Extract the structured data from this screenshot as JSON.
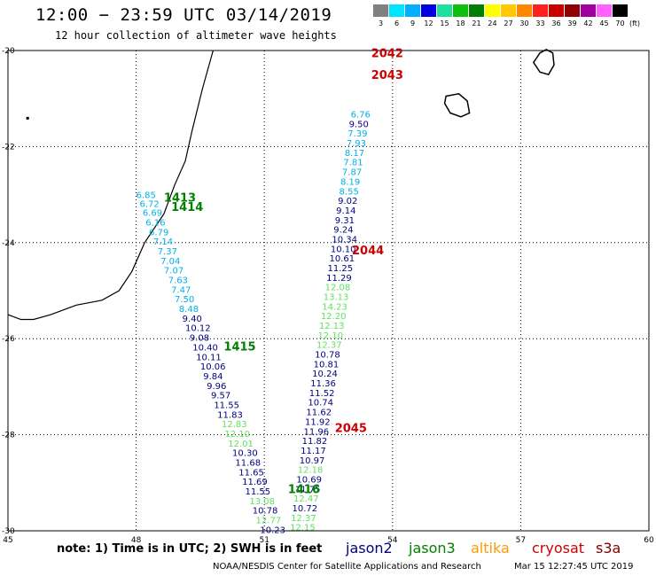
{
  "header": {
    "title": "12:00 − 23:59 UTC 03/14/2019",
    "subtitle": "12 hour collection of altimeter wave heights"
  },
  "legend": {
    "labels": [
      "3",
      "6",
      "9",
      "12",
      "15",
      "18",
      "21",
      "24",
      "27",
      "30",
      "33",
      "36",
      "39",
      "42",
      "45",
      "70"
    ],
    "colors": [
      "#808080",
      "#00e4ff",
      "#00b0ff",
      "#0000e0",
      "#20e0a0",
      "#10c010",
      "#008000",
      "#ffff00",
      "#ffc800",
      "#ff8800",
      "#ff2020",
      "#c80000",
      "#900000",
      "#a000a0",
      "#ff60ff",
      "#000000"
    ],
    "unit": "(ft)"
  },
  "map": {
    "lon_range": [
      45,
      60
    ],
    "lat_range": [
      -30,
      -20
    ],
    "lon_ticks": [
      45,
      48,
      51,
      54,
      57,
      60
    ],
    "lat_ticks": [
      -20,
      -22,
      -24,
      -26,
      -28,
      -30
    ],
    "lon_labels": [
      "45",
      "48",
      "51",
      "54",
      "57",
      "60"
    ],
    "lat_labels": [
      "-20",
      "-22",
      "-24",
      "-26",
      "-28",
      "-30"
    ],
    "grid": "dotted",
    "colors": {
      "jason2": "#000080",
      "jason3": "#008000",
      "altika": "#ff9900",
      "cryosat": "#cc0000",
      "s3a": "#800000",
      "swh_light_blue": "#00b0e8",
      "swh_dark_blue": "#000080",
      "swh_light_green": "#60e060"
    },
    "coastlines": {
      "madagascar": [
        [
          49.8,
          -20.0
        ],
        [
          49.55,
          -20.8
        ],
        [
          49.3,
          -21.7
        ],
        [
          49.15,
          -22.3
        ],
        [
          48.9,
          -22.8
        ],
        [
          48.65,
          -23.4
        ],
        [
          48.2,
          -24.0
        ],
        [
          47.9,
          -24.6
        ],
        [
          47.6,
          -25.0
        ],
        [
          47.2,
          -25.2
        ],
        [
          46.6,
          -25.3
        ],
        [
          46.0,
          -25.5
        ],
        [
          45.6,
          -25.6
        ],
        [
          45.3,
          -25.6
        ],
        [
          45.0,
          -25.5
        ]
      ],
      "reunion": [
        [
          55.25,
          -20.95
        ],
        [
          55.55,
          -20.9
        ],
        [
          55.75,
          -21.05
        ],
        [
          55.8,
          -21.3
        ],
        [
          55.6,
          -21.38
        ],
        [
          55.35,
          -21.3
        ],
        [
          55.22,
          -21.1
        ],
        [
          55.25,
          -20.95
        ]
      ],
      "mauritius": [
        [
          57.6,
          -19.98
        ],
        [
          57.75,
          -20.05
        ],
        [
          57.78,
          -20.3
        ],
        [
          57.65,
          -20.5
        ],
        [
          57.45,
          -20.45
        ],
        [
          57.3,
          -20.25
        ],
        [
          57.45,
          -20.05
        ],
        [
          57.6,
          -19.98
        ]
      ],
      "islet": [
        45.45,
        -21.4
      ]
    },
    "pass_labels": [
      {
        "text": "1413",
        "lon": 48.65,
        "lat": -23.05,
        "color": "#008000"
      },
      {
        "text": "1414",
        "lon": 48.82,
        "lat": -23.25,
        "color": "#008000"
      },
      {
        "text": "1415",
        "lon": 50.05,
        "lat": -26.15,
        "color": "#008000"
      },
      {
        "text": "1416",
        "lon": 51.55,
        "lat": -29.12,
        "color": "#008000"
      },
      {
        "text": "2042",
        "lon": 53.5,
        "lat": -20.05,
        "color": "#cc0000"
      },
      {
        "text": "2043",
        "lon": 53.5,
        "lat": -20.5,
        "color": "#cc0000"
      },
      {
        "text": "2044",
        "lon": 53.05,
        "lat": -24.15,
        "color": "#cc0000"
      },
      {
        "text": "2045",
        "lon": 52.65,
        "lat": -27.85,
        "color": "#cc0000"
      }
    ],
    "swh_labels": [
      {
        "v": "6.85",
        "lon": 48.0,
        "lat": -23.0,
        "c": "swh_light_blue"
      },
      {
        "v": "6.72",
        "lon": 48.08,
        "lat": -23.18,
        "c": "swh_light_blue"
      },
      {
        "v": "6.69",
        "lon": 48.15,
        "lat": -23.37,
        "c": "swh_light_blue"
      },
      {
        "v": "6.16",
        "lon": 48.22,
        "lat": -23.57,
        "c": "swh_light_blue"
      },
      {
        "v": "6.79",
        "lon": 48.3,
        "lat": -23.77,
        "c": "swh_light_blue"
      },
      {
        "v": "7.14",
        "lon": 48.4,
        "lat": -23.97,
        "c": "swh_light_blue"
      },
      {
        "v": "7.37",
        "lon": 48.5,
        "lat": -24.17,
        "c": "swh_light_blue"
      },
      {
        "v": "7.04",
        "lon": 48.57,
        "lat": -24.37,
        "c": "swh_light_blue"
      },
      {
        "v": "7.07",
        "lon": 48.65,
        "lat": -24.57,
        "c": "swh_light_blue"
      },
      {
        "v": "7.63",
        "lon": 48.75,
        "lat": -24.77,
        "c": "swh_light_blue"
      },
      {
        "v": "7.47",
        "lon": 48.82,
        "lat": -24.97,
        "c": "swh_light_blue"
      },
      {
        "v": "7.50",
        "lon": 48.9,
        "lat": -25.17,
        "c": "swh_light_blue"
      },
      {
        "v": "8.48",
        "lon": 49.0,
        "lat": -25.37,
        "c": "swh_light_blue"
      },
      {
        "v": "9.40",
        "lon": 49.08,
        "lat": -25.57,
        "c": "swh_dark_blue"
      },
      {
        "v": "10.12",
        "lon": 49.15,
        "lat": -25.77,
        "c": "swh_dark_blue"
      },
      {
        "v": "9.08",
        "lon": 49.25,
        "lat": -25.97,
        "c": "swh_dark_blue"
      },
      {
        "v": "10.40",
        "lon": 49.32,
        "lat": -26.17,
        "c": "swh_dark_blue"
      },
      {
        "v": "10.11",
        "lon": 49.4,
        "lat": -26.37,
        "c": "swh_dark_blue"
      },
      {
        "v": "10.06",
        "lon": 49.5,
        "lat": -26.57,
        "c": "swh_dark_blue"
      },
      {
        "v": "9.84",
        "lon": 49.57,
        "lat": -26.77,
        "c": "swh_dark_blue"
      },
      {
        "v": "9.96",
        "lon": 49.65,
        "lat": -26.97,
        "c": "swh_dark_blue"
      },
      {
        "v": "9.57",
        "lon": 49.75,
        "lat": -27.17,
        "c": "swh_dark_blue"
      },
      {
        "v": "11.55",
        "lon": 49.82,
        "lat": -27.37,
        "c": "swh_dark_blue"
      },
      {
        "v": "11.83",
        "lon": 49.9,
        "lat": -27.57,
        "c": "swh_dark_blue"
      },
      {
        "v": "12.83",
        "lon": 50.0,
        "lat": -27.77,
        "c": "swh_light_green"
      },
      {
        "v": "12.10",
        "lon": 50.07,
        "lat": -27.97,
        "c": "swh_light_green"
      },
      {
        "v": "12.01",
        "lon": 50.15,
        "lat": -28.17,
        "c": "swh_light_green"
      },
      {
        "v": "10.30",
        "lon": 50.25,
        "lat": -28.37,
        "c": "swh_dark_blue"
      },
      {
        "v": "11.68",
        "lon": 50.32,
        "lat": -28.57,
        "c": "swh_dark_blue"
      },
      {
        "v": "11.65",
        "lon": 50.4,
        "lat": -28.77,
        "c": "swh_dark_blue"
      },
      {
        "v": "11.69",
        "lon": 50.48,
        "lat": -28.97,
        "c": "swh_dark_blue"
      },
      {
        "v": "11.55",
        "lon": 50.55,
        "lat": -29.17,
        "c": "swh_dark_blue"
      },
      {
        "v": "13.08",
        "lon": 50.65,
        "lat": -29.37,
        "c": "swh_light_green"
      },
      {
        "v": "10.78",
        "lon": 50.72,
        "lat": -29.57,
        "c": "swh_dark_blue"
      },
      {
        "v": "12.77",
        "lon": 50.8,
        "lat": -29.77,
        "c": "swh_light_green"
      },
      {
        "v": "10.23",
        "lon": 50.9,
        "lat": -29.97,
        "c": "swh_dark_blue"
      },
      {
        "v": "12.15",
        "lon": 51.6,
        "lat": -29.92,
        "c": "swh_light_green"
      },
      {
        "v": "12.37",
        "lon": 51.62,
        "lat": -29.72,
        "c": "swh_light_green"
      },
      {
        "v": "10.72",
        "lon": 51.65,
        "lat": -29.52,
        "c": "swh_dark_blue"
      },
      {
        "v": "12.47",
        "lon": 51.68,
        "lat": -29.32,
        "c": "swh_light_green"
      },
      {
        "v": "11.75",
        "lon": 51.72,
        "lat": -29.12,
        "c": "swh_dark_blue"
      },
      {
        "v": "10.69",
        "lon": 51.75,
        "lat": -28.92,
        "c": "swh_dark_blue"
      },
      {
        "v": "12.18",
        "lon": 51.78,
        "lat": -28.72,
        "c": "swh_light_green"
      },
      {
        "v": "10.97",
        "lon": 51.82,
        "lat": -28.52,
        "c": "swh_dark_blue"
      },
      {
        "v": "11.17",
        "lon": 51.85,
        "lat": -28.32,
        "c": "swh_dark_blue"
      },
      {
        "v": "11.82",
        "lon": 51.88,
        "lat": -28.12,
        "c": "swh_dark_blue"
      },
      {
        "v": "11.96",
        "lon": 51.92,
        "lat": -27.92,
        "c": "swh_dark_blue"
      },
      {
        "v": "11.92",
        "lon": 51.95,
        "lat": -27.72,
        "c": "swh_dark_blue"
      },
      {
        "v": "11.62",
        "lon": 51.98,
        "lat": -27.52,
        "c": "swh_dark_blue"
      },
      {
        "v": "10.74",
        "lon": 52.02,
        "lat": -27.32,
        "c": "swh_dark_blue"
      },
      {
        "v": "11.52",
        "lon": 52.05,
        "lat": -27.12,
        "c": "swh_dark_blue"
      },
      {
        "v": "11.36",
        "lon": 52.08,
        "lat": -26.92,
        "c": "swh_dark_blue"
      },
      {
        "v": "10.24",
        "lon": 52.12,
        "lat": -26.72,
        "c": "swh_dark_blue"
      },
      {
        "v": "10.81",
        "lon": 52.15,
        "lat": -26.52,
        "c": "swh_dark_blue"
      },
      {
        "v": "10.78",
        "lon": 52.18,
        "lat": -26.32,
        "c": "swh_dark_blue"
      },
      {
        "v": "12.37",
        "lon": 52.22,
        "lat": -26.12,
        "c": "swh_light_green"
      },
      {
        "v": "12.10",
        "lon": 52.25,
        "lat": -25.92,
        "c": "swh_light_green"
      },
      {
        "v": "12.13",
        "lon": 52.28,
        "lat": -25.72,
        "c": "swh_light_green"
      },
      {
        "v": "12.20",
        "lon": 52.32,
        "lat": -25.52,
        "c": "swh_light_green"
      },
      {
        "v": "14.23",
        "lon": 52.35,
        "lat": -25.32,
        "c": "swh_light_green"
      },
      {
        "v": "13.13",
        "lon": 52.38,
        "lat": -25.12,
        "c": "swh_light_green"
      },
      {
        "v": "12.08",
        "lon": 52.42,
        "lat": -24.92,
        "c": "swh_light_green"
      },
      {
        "v": "11.29",
        "lon": 52.45,
        "lat": -24.72,
        "c": "swh_dark_blue"
      },
      {
        "v": "11.25",
        "lon": 52.48,
        "lat": -24.52,
        "c": "swh_dark_blue"
      },
      {
        "v": "10.61",
        "lon": 52.52,
        "lat": -24.32,
        "c": "swh_dark_blue"
      },
      {
        "v": "10.10",
        "lon": 52.55,
        "lat": -24.12,
        "c": "swh_dark_blue"
      },
      {
        "v": "10.34",
        "lon": 52.58,
        "lat": -23.92,
        "c": "swh_dark_blue"
      },
      {
        "v": "9.24",
        "lon": 52.62,
        "lat": -23.72,
        "c": "swh_dark_blue"
      },
      {
        "v": "9.31",
        "lon": 52.65,
        "lat": -23.52,
        "c": "swh_dark_blue"
      },
      {
        "v": "9.14",
        "lon": 52.68,
        "lat": -23.32,
        "c": "swh_dark_blue"
      },
      {
        "v": "9.02",
        "lon": 52.72,
        "lat": -23.12,
        "c": "swh_dark_blue"
      },
      {
        "v": "8.55",
        "lon": 52.75,
        "lat": -22.92,
        "c": "swh_light_blue"
      },
      {
        "v": "8.19",
        "lon": 52.78,
        "lat": -22.72,
        "c": "swh_light_blue"
      },
      {
        "v": "7.87",
        "lon": 52.82,
        "lat": -22.52,
        "c": "swh_light_blue"
      },
      {
        "v": "7.81",
        "lon": 52.85,
        "lat": -22.32,
        "c": "swh_light_blue"
      },
      {
        "v": "8.17",
        "lon": 52.88,
        "lat": -22.12,
        "c": "swh_light_blue"
      },
      {
        "v": "7.93",
        "lon": 52.92,
        "lat": -21.92,
        "c": "swh_light_blue"
      },
      {
        "v": "7.39",
        "lon": 52.95,
        "lat": -21.72,
        "c": "swh_light_blue"
      },
      {
        "v": "9.50",
        "lon": 52.98,
        "lat": -21.52,
        "c": "swh_dark_blue"
      },
      {
        "v": "6.76",
        "lon": 53.02,
        "lat": -21.32,
        "c": "swh_light_blue"
      }
    ]
  },
  "footer": {
    "note": "note:  1) Time is in UTC;  2) SWH is in feet",
    "sat_names": [
      {
        "text": "jason2",
        "color": "#000080"
      },
      {
        "text": "jason3",
        "color": "#008000"
      },
      {
        "text": "altika",
        "color": "#ff9900"
      },
      {
        "text": "cryosat",
        "color": "#cc0000"
      },
      {
        "text": "s3a",
        "color": "#800000"
      }
    ],
    "credit": "NOAA/NESDIS Center for Satellite Applications and Research",
    "timestamp": "Mar 15 12:27:45 UTC 2019"
  }
}
